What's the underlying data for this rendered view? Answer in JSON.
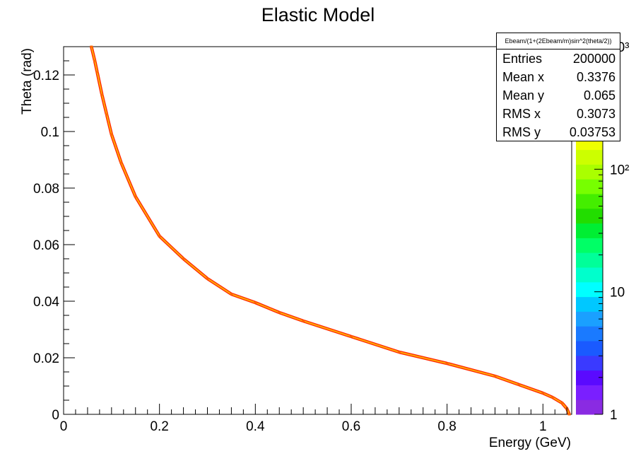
{
  "chart_data": {
    "type": "heatmap",
    "title": "Elastic Model",
    "xlabel": "Energy (GeV)",
    "ylabel": "Theta (rad)",
    "xlim": [
      0,
      1.06
    ],
    "ylim": [
      0,
      0.13
    ],
    "x_ticks": [
      0,
      0.2,
      0.4,
      0.6,
      0.8,
      1
    ],
    "x_tick_labels": [
      "0",
      "0.2",
      "0.4",
      "0.6",
      "0.8",
      "1"
    ],
    "y_ticks": [
      0,
      0.02,
      0.04,
      0.06,
      0.08,
      0.1,
      0.12
    ],
    "y_tick_labels": [
      "0",
      "0.02",
      "0.04",
      "0.06",
      "0.08",
      "0.1",
      "0.12"
    ],
    "function": "Ebeam/(1+(2Ebeam/m)sin^2(theta/2))",
    "points": [
      [
        1.055,
        0.0
      ],
      [
        1.05,
        0.002
      ],
      [
        1.04,
        0.004
      ],
      [
        1.02,
        0.006
      ],
      [
        1.0,
        0.0075
      ],
      [
        0.95,
        0.0105
      ],
      [
        0.9,
        0.0135
      ],
      [
        0.8,
        0.018
      ],
      [
        0.7,
        0.022
      ],
      [
        0.6,
        0.0275
      ],
      [
        0.5,
        0.033
      ],
      [
        0.45,
        0.036
      ],
      [
        0.4,
        0.0395
      ],
      [
        0.35,
        0.0425
      ],
      [
        0.3,
        0.048
      ],
      [
        0.25,
        0.055
      ],
      [
        0.2,
        0.063
      ],
      [
        0.15,
        0.077
      ],
      [
        0.12,
        0.089
      ],
      [
        0.1,
        0.099
      ],
      [
        0.09,
        0.106
      ],
      [
        0.08,
        0.113
      ],
      [
        0.07,
        0.121
      ],
      [
        0.065,
        0.125
      ],
      [
        0.058,
        0.13
      ]
    ],
    "colorbar": {
      "scale": "log",
      "range": [
        1,
        1000
      ],
      "tick_labels": [
        "1",
        "10",
        "10²",
        "10³"
      ],
      "colors": [
        "#8a2be2",
        "#7a1fff",
        "#5a0aff",
        "#3a3aff",
        "#1a5aff",
        "#1a7aff",
        "#1aa0ff",
        "#00c8ff",
        "#00ffff",
        "#00ffcc",
        "#00ff99",
        "#00ff66",
        "#00ee33",
        "#22dd00",
        "#44ee00",
        "#77ff00",
        "#aaff00",
        "#ccff00",
        "#eeff00",
        "#ffff00",
        "#ffee00",
        "#ffcc00",
        "#ffaa00",
        "#ff7700",
        "#ff3300"
      ]
    }
  },
  "stats": {
    "title": "Ebeam/(1+(2Ebeam/m)sin^2(theta/2))",
    "rows": [
      {
        "key": "Entries",
        "value": "200000"
      },
      {
        "key": "Mean x",
        "value": "0.3376"
      },
      {
        "key": "Mean y",
        "value": "0.065"
      },
      {
        "key": "RMS x",
        "value": "0.3073"
      },
      {
        "key": "RMS y",
        "value": "0.03753"
      }
    ]
  }
}
